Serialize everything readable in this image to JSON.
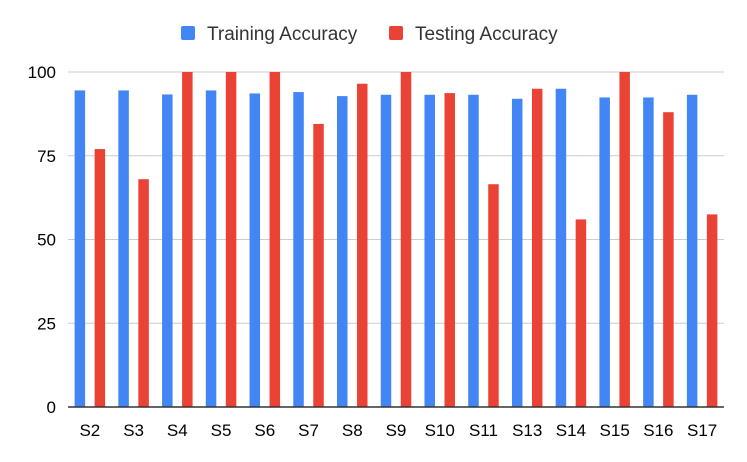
{
  "chart_data": {
    "type": "bar",
    "title": "",
    "xlabel": "",
    "ylabel": "",
    "ylim": [
      0,
      100
    ],
    "yticks": [
      0,
      25,
      50,
      75,
      100
    ],
    "grid": true,
    "legend_position": "top-center",
    "categories": [
      "S2",
      "S3",
      "S4",
      "S5",
      "S6",
      "S7",
      "S8",
      "S9",
      "S10",
      "S11",
      "S13",
      "S14",
      "S15",
      "S16",
      "S17"
    ],
    "series": [
      {
        "name": "Training Accuracy",
        "color": "#4285f4",
        "values": [
          94.5,
          94.5,
          93.3,
          94.5,
          93.6,
          94.0,
          92.8,
          93.2,
          93.2,
          93.2,
          92.0,
          95.0,
          92.4,
          92.4,
          93.2
        ]
      },
      {
        "name": "Testing Accuracy",
        "color": "#ea4335",
        "values": [
          77.0,
          68.0,
          100,
          100,
          100,
          84.5,
          96.5,
          100,
          93.7,
          66.5,
          95.0,
          56.0,
          100,
          88.0,
          57.5
        ]
      }
    ]
  }
}
